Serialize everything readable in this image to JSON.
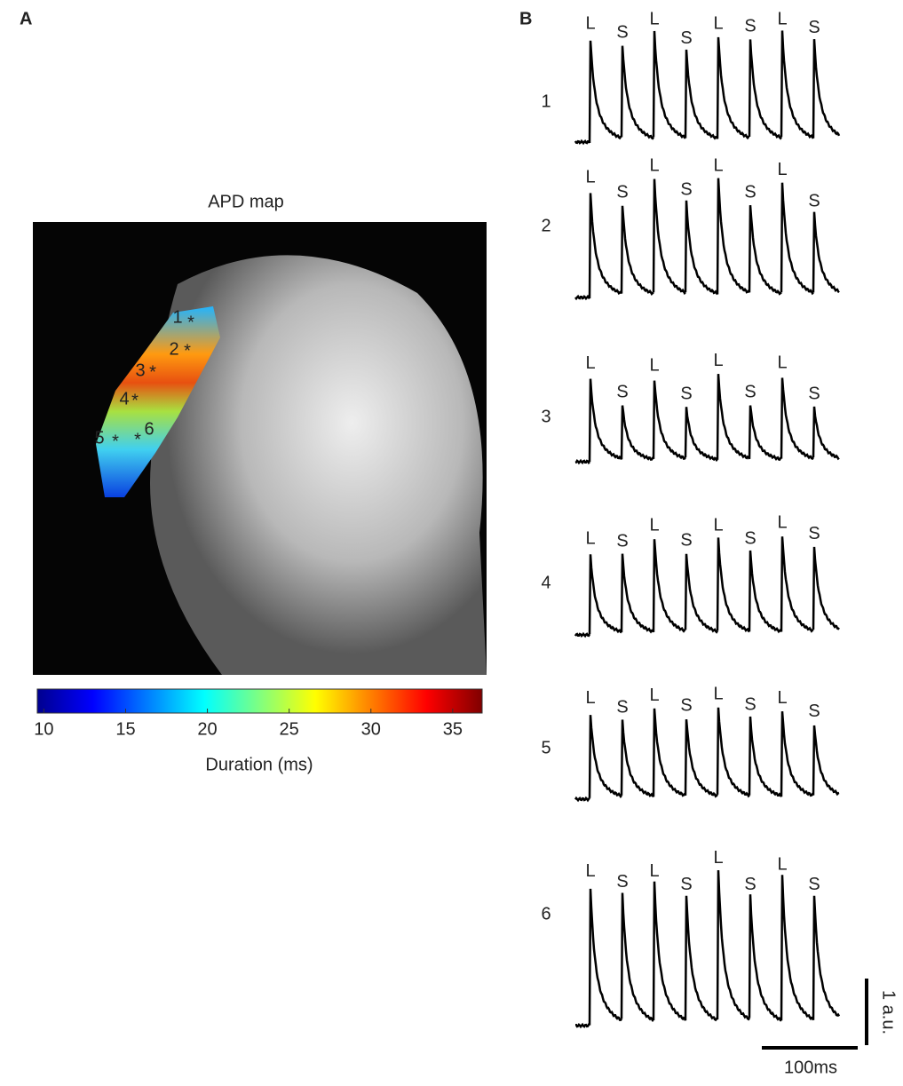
{
  "panel_a": {
    "label": "A",
    "title": "APD map",
    "points": [
      {
        "label": "1"
      },
      {
        "label": "2"
      },
      {
        "label": "3"
      },
      {
        "label": "4"
      },
      {
        "label": "5"
      },
      {
        "label": "6"
      }
    ],
    "marker": "*",
    "colorbar": {
      "label": "Duration (ms)",
      "lim": [
        9.6,
        36.8
      ],
      "ticks": [
        10,
        15,
        20,
        25,
        30,
        35
      ]
    }
  },
  "panel_b": {
    "label": "B",
    "traces": [
      {
        "name": "1",
        "beat_labels": [
          "L",
          "S",
          "L",
          "S",
          "L",
          "S",
          "L",
          "S"
        ],
        "amplitudes": [
          1.53,
          1.4,
          1.6,
          1.31,
          1.53,
          1.49,
          1.6,
          1.47
        ]
      },
      {
        "name": "2",
        "beat_labels": [
          "L",
          "S",
          "L",
          "S",
          "L",
          "S",
          "L",
          "S"
        ],
        "amplitudes": [
          1.56,
          1.33,
          1.73,
          1.37,
          1.73,
          1.33,
          1.67,
          1.2
        ]
      },
      {
        "name": "3",
        "beat_labels": [
          "L",
          "S",
          "L",
          "S",
          "L",
          "S",
          "L",
          "S"
        ],
        "amplitudes": [
          1.23,
          0.8,
          1.2,
          0.77,
          1.27,
          0.8,
          1.24,
          0.77
        ]
      },
      {
        "name": "4",
        "beat_labels": [
          "L",
          "S",
          "L",
          "S",
          "L",
          "S",
          "L",
          "S"
        ],
        "amplitudes": [
          1.2,
          1.16,
          1.4,
          1.17,
          1.4,
          1.2,
          1.44,
          1.27
        ]
      },
      {
        "name": "5",
        "beat_labels": [
          "L",
          "S",
          "L",
          "S",
          "L",
          "S",
          "L",
          "S"
        ],
        "amplitudes": [
          1.27,
          1.13,
          1.31,
          1.16,
          1.33,
          1.17,
          1.27,
          1.07
        ]
      },
      {
        "name": "6",
        "beat_labels": [
          "L",
          "S",
          "L",
          "S",
          "L",
          "S",
          "L",
          "S"
        ],
        "amplitudes": [
          2.07,
          1.91,
          2.07,
          1.87,
          2.27,
          1.87,
          2.17,
          1.87
        ]
      }
    ],
    "scale_bar": {
      "amplitude": 1,
      "amplitude_label": "1 a.u.",
      "time": 100,
      "time_label": "100ms"
    }
  }
}
